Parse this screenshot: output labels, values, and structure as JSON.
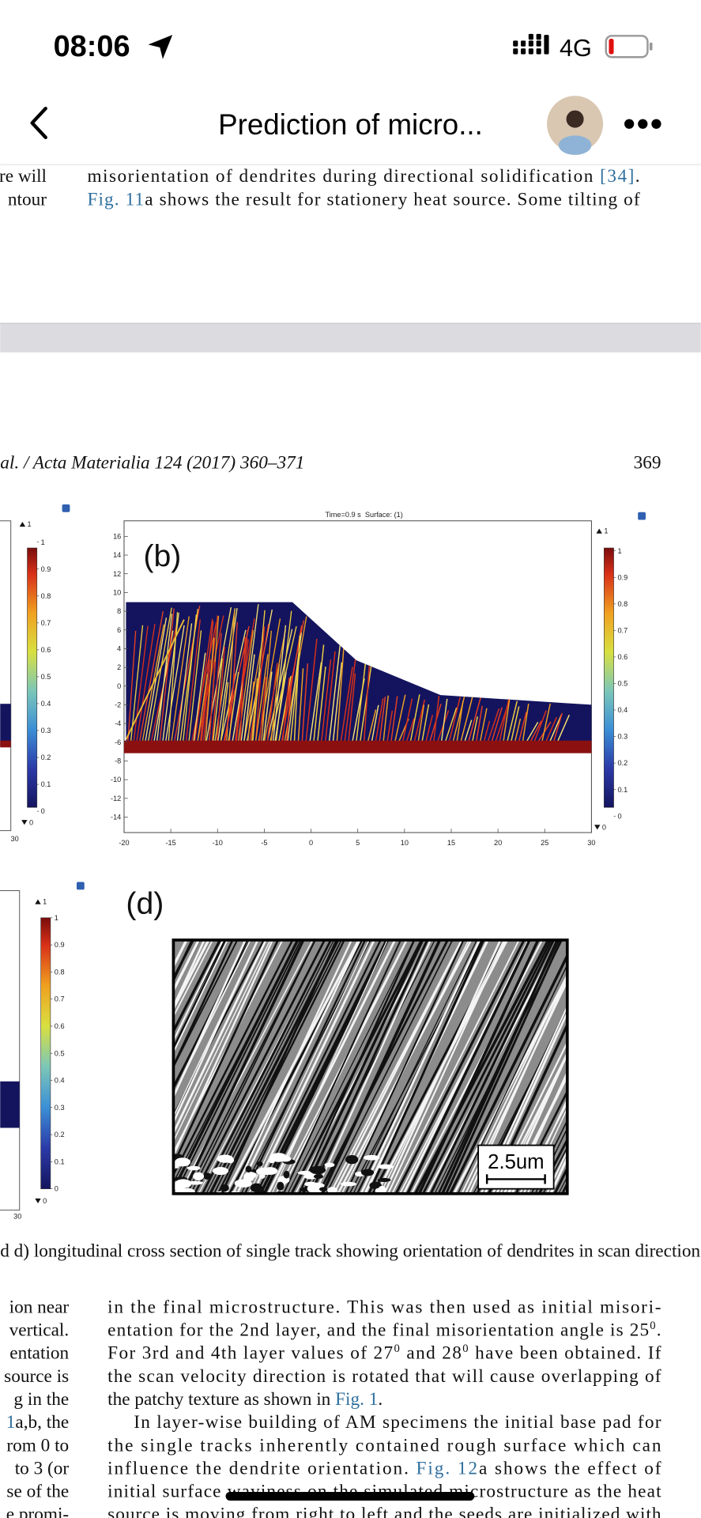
{
  "status_bar": {
    "time": "08:06",
    "network": "4G"
  },
  "nav_bar": {
    "title": "Prediction of micro..."
  },
  "top_text": {
    "left_fragments": [
      [
        {
          "text": "re will"
        }
      ],
      [
        {
          "text": "ntour"
        }
      ]
    ],
    "lines": [
      [
        {
          "text": "misorientation of dendrites during directional solidification "
        },
        {
          "text": "[34]",
          "link": true
        },
        {
          "text": "."
        }
      ],
      [
        {
          "text": "Fig. 11",
          "link": true
        },
        {
          "text": "a shows the result for stationery heat source. Some tilting of"
        }
      ]
    ]
  },
  "running_header": {
    "journal": "al. / Acta Materialia 124 (2017) 360–371",
    "page": "369"
  },
  "figure": {
    "panel_a": {
      "colorbar_ends": [
        1,
        0
      ],
      "colorbar_ticks": [
        1,
        0.9,
        0.8,
        0.7,
        0.6,
        0.5,
        0.4,
        0.3,
        0.2,
        0.1,
        0
      ],
      "xtick": 30
    },
    "panel_b": {
      "label": "(b)",
      "title": "Time=0.9 s  Surface: (1)",
      "yticks": [
        16,
        14,
        12,
        10,
        8,
        6,
        4,
        2,
        0,
        -2,
        -4,
        -6,
        -8,
        -10,
        -12,
        -14
      ],
      "xticks": [
        -20,
        -15,
        -10,
        -5,
        0,
        5,
        10,
        15,
        20,
        25,
        30
      ],
      "colorbar_ends": [
        1,
        0
      ],
      "colorbar_ticks": [
        1,
        0.9,
        0.8,
        0.7,
        0.6,
        0.5,
        0.4,
        0.3,
        0.2,
        0.1,
        0
      ]
    },
    "panel_c": {
      "colorbar_ends": [
        1,
        0
      ],
      "colorbar_ticks": [
        1,
        0.9,
        0.8,
        0.7,
        0.6,
        0.5,
        0.4,
        0.3,
        0.2,
        0.1,
        0
      ],
      "xtick": 30
    },
    "panel_d": {
      "label": "(d)",
      "scale_bar": "2.5um"
    },
    "caption": "d d) longitudinal cross section of single track showing orientation of dendrites in scan direction."
  },
  "body_text": {
    "left_fragments": [
      [
        {
          "text": "ion near"
        }
      ],
      [
        {
          "text": "vertical."
        }
      ],
      [
        {
          "text": "entation"
        }
      ],
      [
        {
          "text": "source is"
        }
      ],
      [
        {
          "text": "g in the"
        }
      ],
      [
        {
          "text": "1",
          "link": true
        },
        {
          "text": "a,b, the"
        }
      ],
      [
        {
          "text": "rom 0 to"
        }
      ],
      [
        {
          "text": "to 3 (or"
        }
      ],
      [
        {
          "text": "se of the"
        }
      ],
      [
        {
          "text": "e promi-"
        }
      ]
    ],
    "lines": [
      [
        {
          "text": "in the final microstructure. This was then used as initial misori-"
        }
      ],
      [
        {
          "text": "entation for the 2nd layer, and the final misorientation angle is 25"
        },
        {
          "text": "0",
          "sup": true
        },
        {
          "text": "."
        }
      ],
      [
        {
          "text": "For 3rd and 4th layer values of 27"
        },
        {
          "text": "0",
          "sup": true
        },
        {
          "text": " and 28"
        },
        {
          "text": "0",
          "sup": true
        },
        {
          "text": " have been obtained. If"
        }
      ],
      [
        {
          "text": "the scan velocity direction is rotated that will cause overlapping of"
        }
      ],
      [
        {
          "text": "the patchy texture as shown in "
        },
        {
          "text": "Fig. 1",
          "link": true
        },
        {
          "text": "."
        }
      ],
      [
        {
          "text": "In layer-wise building of AM specimens the initial base pad for"
        }
      ],
      [
        {
          "text": "the single tracks inherently contained rough surface which can"
        }
      ],
      [
        {
          "text": "influence the dendrite orientation. "
        },
        {
          "text": "Fig. 12",
          "link": true
        },
        {
          "text": "a shows the effect of"
        }
      ],
      [
        {
          "text": "initial surface waviness on the simulated microstructure as the heat"
        }
      ],
      [
        {
          "text": "source is moving from right to left and the seeds are initialized with"
        }
      ]
    ]
  }
}
